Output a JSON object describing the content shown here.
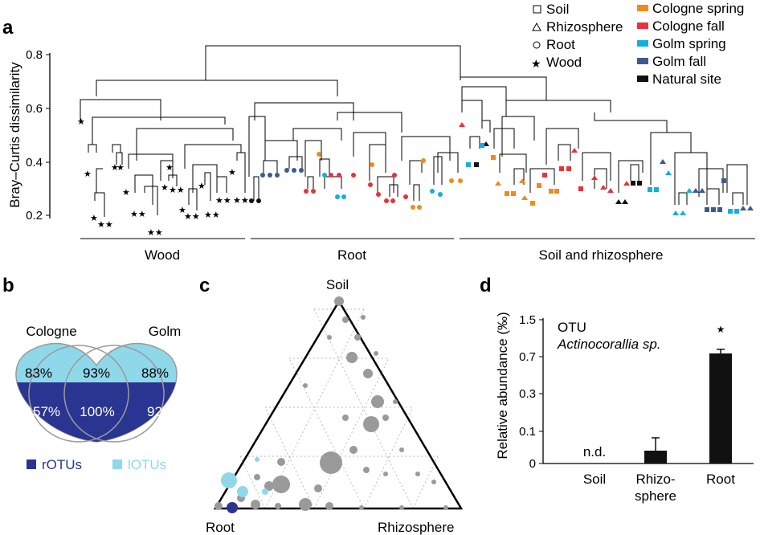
{
  "panel_a": {
    "label": "a",
    "y_axis_label": "Bray–Curtis dissimilarity",
    "y_ticks": [
      "0.8",
      "0.6",
      "0.4",
      "0.2"
    ],
    "groups": [
      "Wood",
      "Root",
      "Soil and rhizosphere"
    ],
    "legend_shapes": [
      {
        "symbol": "□",
        "label": "Soil"
      },
      {
        "symbol": "△",
        "label": "Rhizosphere"
      },
      {
        "symbol": "○",
        "label": "Root"
      },
      {
        "symbol": "★",
        "label": "Wood"
      }
    ],
    "legend_sites": [
      {
        "color": "#f08a1c",
        "label": "Cologne spring"
      },
      {
        "color": "#e8323a",
        "label": "Cologne fall"
      },
      {
        "color": "#14aee2",
        "label": "Golm spring"
      },
      {
        "color": "#3c5a8c",
        "label": "Golm fall"
      },
      {
        "color": "#111111",
        "label": "Natural site"
      }
    ]
  },
  "panel_b": {
    "label": "b",
    "left_set": "Cologne",
    "right_set": "Golm",
    "percent_light_left": "83%",
    "percent_light_mid": "93%",
    "percent_light_right": "88%",
    "percent_dark_left": "57%",
    "percent_dark_mid": "100%",
    "percent_dark_right": "92%",
    "legend_rotus": "rOTUs",
    "legend_lotus": "lOTUs",
    "color_rotus": "#2a3591",
    "color_lotus": "#8ed8ea"
  },
  "panel_c": {
    "label": "c",
    "vertex_top": "Soil",
    "vertex_left": "Root",
    "vertex_right": "Rhizosphere"
  },
  "panel_d": {
    "label": "d",
    "title_line1": "OTU",
    "title_line2": "Actinocorallia sp.",
    "nd_label": "n.d.",
    "significance": "★",
    "chart_data": {
      "type": "bar",
      "categories": [
        "Soil",
        "Rhizo-sphere",
        "Root"
      ],
      "values": [
        0,
        0.04,
        0.77
      ],
      "errors": [
        0,
        0.04,
        0.09
      ],
      "ylabel": "Relative abundance (‰)",
      "yticks": [
        "0",
        "0.1",
        "0.3",
        "0.7",
        "1.5"
      ],
      "scale": "nonlinear (square-root like)"
    },
    "x_labels": {
      "soil": "Soil",
      "rhizo_1": "Rhizo-",
      "rhizo_2": "sphere",
      "root": "Root"
    }
  }
}
